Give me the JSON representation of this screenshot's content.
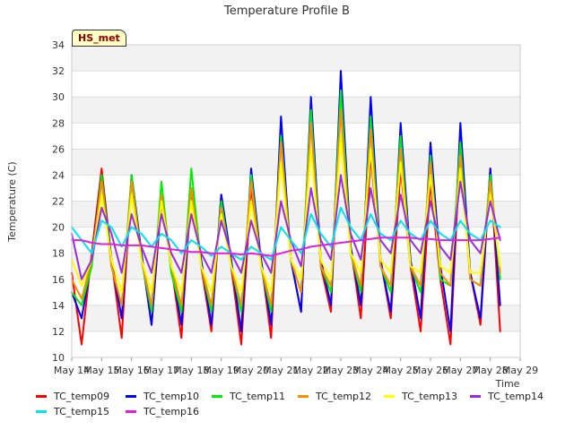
{
  "chart_data": {
    "type": "line",
    "title": "Temperature Profile B",
    "xlabel": "Time",
    "ylabel": "Temperature (C)",
    "ylim": [
      10,
      34
    ],
    "yticks": [
      10,
      12,
      14,
      16,
      18,
      20,
      22,
      24,
      26,
      28,
      30,
      32,
      34
    ],
    "xlim": [
      14,
      29
    ],
    "xticks": [
      "May 14",
      "May 15",
      "May 16",
      "May 17",
      "May 18",
      "May 19",
      "May 20",
      "May 21",
      "May 22",
      "May 23",
      "May 24",
      "May 25",
      "May 26",
      "May 27",
      "May 28",
      "May 29"
    ],
    "grid": true,
    "legend_placement": "bottom",
    "annotation": "HS_met",
    "x": [
      14.0,
      14.33,
      14.67,
      15.0,
      15.33,
      15.67,
      16.0,
      16.33,
      16.67,
      17.0,
      17.33,
      17.67,
      18.0,
      18.33,
      18.67,
      19.0,
      19.33,
      19.67,
      20.0,
      20.33,
      20.67,
      21.0,
      21.33,
      21.67,
      22.0,
      22.33,
      22.67,
      23.0,
      23.33,
      23.67,
      24.0,
      24.33,
      24.67,
      25.0,
      25.33,
      25.67,
      26.0,
      26.33,
      26.67,
      27.0,
      27.33,
      27.67,
      28.0,
      28.33
    ],
    "series": [
      {
        "name": "TC_temp09",
        "color": "#ff0000",
        "values": [
          16.5,
          11.0,
          18.0,
          24.5,
          17.5,
          11.5,
          24.0,
          18.0,
          12.5,
          22.0,
          17.0,
          11.5,
          23.0,
          17.0,
          12.0,
          22.5,
          17.0,
          11.0,
          23.0,
          17.5,
          11.5,
          27.0,
          17.5,
          13.5,
          29.5,
          17.0,
          13.5,
          31.0,
          18.5,
          13.0,
          25.5,
          17.5,
          13.0,
          24.5,
          17.0,
          12.0,
          23.5,
          16.0,
          11.0,
          26.5,
          16.5,
          12.5,
          24.5,
          12.0
        ]
      },
      {
        "name": "TC_temp10",
        "color": "#0000ff",
        "values": [
          15.0,
          13.0,
          17.5,
          24.0,
          17.5,
          13.0,
          24.0,
          18.0,
          12.5,
          22.5,
          17.0,
          12.5,
          23.0,
          17.5,
          12.5,
          22.5,
          17.5,
          12.0,
          24.5,
          17.5,
          12.5,
          28.5,
          17.5,
          13.5,
          30.0,
          17.5,
          14.0,
          32.0,
          18.5,
          14.0,
          30.0,
          17.5,
          13.5,
          28.0,
          17.5,
          13.0,
          26.5,
          17.0,
          12.0,
          28.0,
          16.5,
          13.0,
          24.5,
          14.0
        ]
      },
      {
        "name": "TC_temp11",
        "color": "#00ee00",
        "values": [
          15.0,
          14.0,
          17.0,
          24.0,
          17.0,
          14.0,
          24.0,
          17.5,
          13.5,
          23.5,
          16.5,
          13.5,
          24.5,
          17.0,
          13.5,
          22.0,
          17.0,
          13.5,
          24.0,
          17.0,
          13.5,
          27.0,
          17.5,
          15.0,
          29.0,
          17.0,
          15.0,
          30.5,
          18.0,
          15.0,
          28.5,
          17.0,
          15.0,
          27.0,
          17.0,
          15.0,
          25.5,
          16.0,
          15.5,
          26.5,
          16.0,
          15.5,
          24.0,
          16.0
        ]
      },
      {
        "name": "TC_temp12",
        "color": "#ff8c00",
        "values": [
          16.0,
          14.5,
          17.5,
          23.5,
          17.0,
          14.0,
          23.5,
          17.5,
          14.0,
          22.5,
          17.0,
          14.0,
          23.0,
          17.0,
          14.0,
          21.5,
          17.0,
          14.0,
          23.5,
          17.0,
          14.0,
          26.5,
          17.5,
          15.0,
          28.0,
          17.0,
          15.5,
          29.0,
          18.0,
          15.5,
          27.5,
          17.0,
          15.5,
          26.0,
          17.0,
          15.5,
          25.0,
          16.5,
          15.5,
          25.5,
          16.0,
          15.5,
          23.5,
          16.5
        ]
      },
      {
        "name": "TC_temp13",
        "color": "#ffff00",
        "values": [
          17.5,
          15.5,
          17.5,
          22.5,
          17.5,
          15.0,
          22.5,
          17.5,
          15.0,
          22.0,
          17.0,
          15.0,
          22.0,
          17.0,
          15.0,
          21.0,
          17.0,
          15.0,
          22.0,
          17.0,
          15.0,
          25.0,
          17.5,
          16.0,
          26.0,
          17.5,
          16.0,
          27.0,
          18.0,
          16.5,
          26.0,
          17.5,
          16.5,
          25.0,
          17.0,
          16.5,
          24.0,
          17.0,
          16.5,
          24.5,
          16.5,
          16.5,
          22.5,
          17.0
        ]
      },
      {
        "name": "TC_temp14",
        "color": "#9a2be2",
        "values": [
          19.5,
          16.0,
          17.5,
          21.5,
          19.5,
          16.5,
          21.0,
          18.5,
          16.5,
          21.0,
          18.0,
          16.5,
          21.0,
          18.0,
          16.5,
          20.5,
          18.0,
          16.5,
          20.5,
          18.0,
          16.5,
          22.0,
          19.0,
          17.0,
          23.0,
          19.0,
          17.5,
          24.0,
          19.5,
          17.5,
          23.0,
          19.0,
          18.0,
          22.5,
          19.0,
          18.0,
          22.0,
          18.5,
          17.5,
          23.5,
          19.0,
          18.0,
          22.0,
          19.0
        ]
      },
      {
        "name": "TC_temp15",
        "color": "#00e5ee",
        "values": [
          20.0,
          19.0,
          18.0,
          20.5,
          20.0,
          18.5,
          20.0,
          19.5,
          18.5,
          19.5,
          19.0,
          18.0,
          19.0,
          18.5,
          17.8,
          18.5,
          18.0,
          17.5,
          18.5,
          18.0,
          17.5,
          20.0,
          19.0,
          18.0,
          21.0,
          19.5,
          18.5,
          21.5,
          20.0,
          19.0,
          21.0,
          19.5,
          19.0,
          20.5,
          19.5,
          19.0,
          20.5,
          19.5,
          19.0,
          20.5,
          19.5,
          19.0,
          20.5,
          20.0
        ]
      },
      {
        "name": "TC_temp16",
        "color": "#e020e0",
        "values": [
          19.0,
          19.0,
          18.8,
          18.7,
          18.7,
          18.6,
          18.6,
          18.6,
          18.5,
          18.4,
          18.3,
          18.2,
          18.1,
          18.1,
          18.0,
          18.0,
          18.0,
          17.9,
          18.0,
          17.9,
          17.8,
          18.0,
          18.2,
          18.3,
          18.5,
          18.6,
          18.7,
          18.8,
          18.9,
          19.0,
          19.1,
          19.2,
          19.2,
          19.2,
          19.2,
          19.1,
          19.1,
          19.0,
          19.0,
          19.0,
          19.0,
          19.0,
          19.1,
          19.2
        ]
      }
    ]
  }
}
